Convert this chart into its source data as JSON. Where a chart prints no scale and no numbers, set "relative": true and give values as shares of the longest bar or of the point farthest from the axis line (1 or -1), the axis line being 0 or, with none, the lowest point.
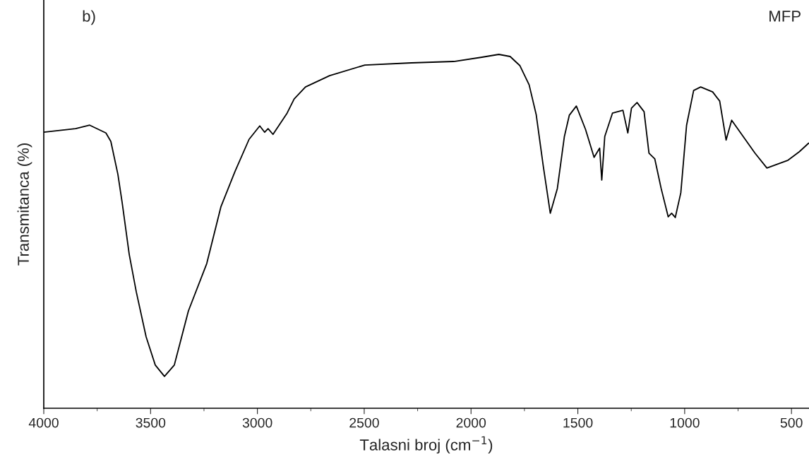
{
  "chart_data": {
    "type": "line",
    "relative": true,
    "xlabel": "Talasni broj (cm$^{−1}$)",
    "ylabel": "Transmitanca (%)",
    "annotations": [
      "b)",
      "MFP"
    ],
    "xlim": [
      4000,
      418
    ],
    "xticks": [
      4000,
      {
        "value": 3750,
        "label": null
      },
      3500,
      {
        "value": 3250,
        "label": null
      },
      3000,
      {
        "value": 2750,
        "label": null
      },
      2500,
      {
        "value": 2250,
        "label": null
      },
      2000,
      {
        "value": 1750,
        "label": null
      },
      1500,
      {
        "value": 1250,
        "label": null
      },
      1000,
      {
        "value": 750,
        "label": null
      },
      500
    ],
    "grid": false,
    "marker": "none",
    "line_style": "solid",
    "series": [
      {
        "color": "#000000",
        "x": [
          4000,
          3851,
          3785,
          3709,
          3686,
          3653,
          3633,
          3600,
          3567,
          3521,
          3478,
          3435,
          3389,
          3323,
          3237,
          3171,
          3105,
          3039,
          2989,
          2966,
          2950,
          2927,
          2861,
          2828,
          2775,
          2662,
          2497,
          2279,
          2081,
          1949,
          1870,
          1817,
          1771,
          1728,
          1695,
          1662,
          1629,
          1596,
          1563,
          1540,
          1507,
          1464,
          1424,
          1398,
          1388,
          1374,
          1338,
          1289,
          1266,
          1249,
          1223,
          1190,
          1167,
          1140,
          1110,
          1077,
          1061,
          1044,
          1018,
          991,
          958,
          925,
          869,
          836,
          806,
          780,
          671,
          615,
          516,
          463,
          420
        ],
        "values": [
          0.78,
          0.79,
          0.8,
          0.778,
          0.754,
          0.661,
          0.581,
          0.435,
          0.329,
          0.202,
          0.122,
          0.09,
          0.122,
          0.275,
          0.409,
          0.569,
          0.669,
          0.76,
          0.798,
          0.78,
          0.79,
          0.774,
          0.834,
          0.874,
          0.908,
          0.94,
          0.97,
          0.976,
          0.98,
          0.992,
          1.0,
          0.994,
          0.968,
          0.914,
          0.83,
          0.685,
          0.551,
          0.621,
          0.768,
          0.828,
          0.854,
          0.788,
          0.709,
          0.735,
          0.645,
          0.768,
          0.834,
          0.842,
          0.778,
          0.848,
          0.864,
          0.838,
          0.721,
          0.705,
          0.621,
          0.541,
          0.551,
          0.539,
          0.609,
          0.8,
          0.898,
          0.908,
          0.894,
          0.868,
          0.758,
          0.814,
          0.721,
          0.679,
          0.701,
          0.725,
          0.749
        ]
      }
    ]
  }
}
